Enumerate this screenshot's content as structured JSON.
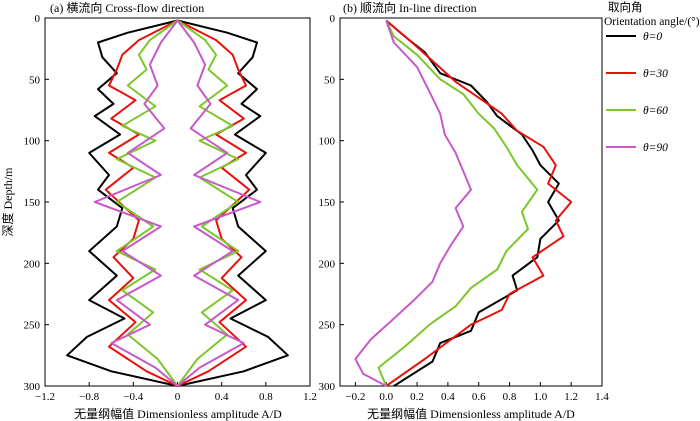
{
  "chart_data": [
    {
      "type": "line",
      "title": "(a) 横流向 Cross-flow direction",
      "xlabel": "无量纲幅值 Dimensionless amplitude A/D",
      "ylabel": "深度 Depth/m",
      "xlim": [
        -1.2,
        1.2
      ],
      "ylim": [
        0,
        300
      ],
      "y_inverted": true,
      "xticks": [
        "−1.2",
        "−0.8",
        "−0.4",
        "0",
        "0.4",
        "0.8",
        "1.2"
      ],
      "yticks": [
        "0",
        "50",
        "100",
        "150",
        "200",
        "250",
        "300"
      ],
      "mirrored": true,
      "series": [
        {
          "name": "θ=0",
          "color": "#000000",
          "points": [
            [
              0,
              2
            ],
            [
              0.45,
              12
            ],
            [
              0.72,
              20
            ],
            [
              0.68,
              32
            ],
            [
              0.55,
              45
            ],
            [
              0.72,
              58
            ],
            [
              0.58,
              70
            ],
            [
              0.75,
              80
            ],
            [
              0.52,
              95
            ],
            [
              0.8,
              110
            ],
            [
              0.62,
              128
            ],
            [
              0.72,
              140
            ],
            [
              0.5,
              155
            ],
            [
              0.55,
              170
            ],
            [
              0.8,
              190
            ],
            [
              0.55,
              210
            ],
            [
              0.8,
              230
            ],
            [
              0.48,
              245
            ],
            [
              0.82,
              260
            ],
            [
              1.0,
              275
            ],
            [
              0.6,
              288
            ],
            [
              0,
              300
            ]
          ]
        },
        {
          "name": "θ=30",
          "color": "#e8120c",
          "points": [
            [
              0,
              2
            ],
            [
              0.35,
              18
            ],
            [
              0.5,
              30
            ],
            [
              0.55,
              42
            ],
            [
              0.62,
              55
            ],
            [
              0.38,
              67
            ],
            [
              0.6,
              82
            ],
            [
              0.35,
              95
            ],
            [
              0.62,
              110
            ],
            [
              0.4,
              122
            ],
            [
              0.65,
              140
            ],
            [
              0.35,
              165
            ],
            [
              0.4,
              180
            ],
            [
              0.58,
              195
            ],
            [
              0.4,
              212
            ],
            [
              0.62,
              230
            ],
            [
              0.38,
              248
            ],
            [
              0.62,
              268
            ],
            [
              0.28,
              288
            ],
            [
              0,
              300
            ]
          ]
        },
        {
          "name": "θ=60",
          "color": "#7dc62c",
          "points": [
            [
              0,
              2
            ],
            [
              0.25,
              18
            ],
            [
              0.35,
              30
            ],
            [
              0.28,
              42
            ],
            [
              0.45,
              55
            ],
            [
              0.2,
              72
            ],
            [
              0.5,
              88
            ],
            [
              0.2,
              100
            ],
            [
              0.55,
              115
            ],
            [
              0.2,
              130
            ],
            [
              0.55,
              150
            ],
            [
              0.22,
              170
            ],
            [
              0.55,
              190
            ],
            [
              0.2,
              205
            ],
            [
              0.5,
              222
            ],
            [
              0.22,
              240
            ],
            [
              0.45,
              258
            ],
            [
              0.18,
              278
            ],
            [
              0,
              300
            ]
          ]
        },
        {
          "name": "θ=90",
          "color": "#c859c8",
          "points": [
            [
              0,
              2
            ],
            [
              0.15,
              20
            ],
            [
              0.25,
              38
            ],
            [
              0.18,
              55
            ],
            [
              0.3,
              70
            ],
            [
              0.12,
              90
            ],
            [
              0.45,
              110
            ],
            [
              0.15,
              128
            ],
            [
              0.75,
              150
            ],
            [
              0.15,
              170
            ],
            [
              0.5,
              190
            ],
            [
              0.15,
              210
            ],
            [
              0.55,
              230
            ],
            [
              0.25,
              250
            ],
            [
              0.6,
              265
            ],
            [
              0.2,
              285
            ],
            [
              0,
              300
            ]
          ]
        }
      ]
    },
    {
      "type": "line",
      "title": "(b) 顺流向 In-line direction",
      "xlabel": "无量纲幅值 Dimensionless amplitude A/D",
      "ylabel": "",
      "xlim": [
        -0.3,
        1.4
      ],
      "ylim": [
        0,
        300
      ],
      "y_inverted": true,
      "xticks": [
        "−0.2",
        "0.0",
        "0.2",
        "0.4",
        "0.6",
        "0.8",
        "1.0",
        "1.2",
        "1.4"
      ],
      "yticks": [
        "0",
        "50",
        "100",
        "150",
        "200",
        "250",
        "300"
      ],
      "series": [
        {
          "name": "θ=0",
          "color": "#000000",
          "points": [
            [
              0.0,
              2
            ],
            [
              0.12,
              15
            ],
            [
              0.25,
              28
            ],
            [
              0.35,
              45
            ],
            [
              0.55,
              55
            ],
            [
              0.65,
              68
            ],
            [
              0.72,
              80
            ],
            [
              0.88,
              95
            ],
            [
              0.95,
              108
            ],
            [
              1.0,
              120
            ],
            [
              1.12,
              135
            ],
            [
              1.05,
              150
            ],
            [
              1.12,
              165
            ],
            [
              1.0,
              180
            ],
            [
              0.98,
              195
            ],
            [
              0.82,
              210
            ],
            [
              0.85,
              222
            ],
            [
              0.6,
              240
            ],
            [
              0.55,
              255
            ],
            [
              0.35,
              265
            ],
            [
              0.3,
              280
            ],
            [
              0.05,
              300
            ]
          ]
        },
        {
          "name": "θ=30",
          "color": "#e8120c",
          "points": [
            [
              0.0,
              2
            ],
            [
              0.15,
              18
            ],
            [
              0.3,
              35
            ],
            [
              0.45,
              52
            ],
            [
              0.6,
              65
            ],
            [
              0.75,
              78
            ],
            [
              0.85,
              92
            ],
            [
              1.02,
              105
            ],
            [
              1.1,
              120
            ],
            [
              1.05,
              135
            ],
            [
              1.2,
              150
            ],
            [
              1.1,
              165
            ],
            [
              1.15,
              178
            ],
            [
              0.95,
              195
            ],
            [
              1.02,
              210
            ],
            [
              0.8,
              225
            ],
            [
              0.75,
              238
            ],
            [
              0.55,
              250
            ],
            [
              0.42,
              262
            ],
            [
              0.25,
              278
            ],
            [
              0.0,
              300
            ]
          ]
        },
        {
          "name": "θ=60",
          "color": "#7dc62c",
          "points": [
            [
              0.0,
              2
            ],
            [
              0.05,
              15
            ],
            [
              0.2,
              30
            ],
            [
              0.35,
              50
            ],
            [
              0.5,
              62
            ],
            [
              0.6,
              78
            ],
            [
              0.7,
              90
            ],
            [
              0.78,
              105
            ],
            [
              0.85,
              120
            ],
            [
              0.98,
              140
            ],
            [
              0.88,
              158
            ],
            [
              0.92,
              172
            ],
            [
              0.78,
              190
            ],
            [
              0.72,
              205
            ],
            [
              0.55,
              220
            ],
            [
              0.45,
              235
            ],
            [
              0.28,
              250
            ],
            [
              0.12,
              268
            ],
            [
              -0.05,
              285
            ],
            [
              0.0,
              300
            ]
          ]
        },
        {
          "name": "θ=90",
          "color": "#c859c8",
          "points": [
            [
              0.0,
              2
            ],
            [
              0.05,
              20
            ],
            [
              0.2,
              40
            ],
            [
              0.28,
              60
            ],
            [
              0.35,
              78
            ],
            [
              0.38,
              95
            ],
            [
              0.45,
              110
            ],
            [
              0.5,
              125
            ],
            [
              0.55,
              140
            ],
            [
              0.45,
              155
            ],
            [
              0.5,
              170
            ],
            [
              0.42,
              185
            ],
            [
              0.35,
              200
            ],
            [
              0.3,
              215
            ],
            [
              0.18,
              230
            ],
            [
              0.05,
              245
            ],
            [
              -0.1,
              262
            ],
            [
              -0.2,
              278
            ],
            [
              -0.15,
              290
            ],
            [
              0.0,
              300
            ]
          ]
        }
      ]
    }
  ],
  "legend": {
    "title_cn": "取向角",
    "title_en": "Orientation angle/(°)",
    "items": [
      {
        "label": "θ=0",
        "color": "#000000"
      },
      {
        "label": "θ=30",
        "color": "#e8120c"
      },
      {
        "label": "θ=60",
        "color": "#7dc62c"
      },
      {
        "label": "θ=90",
        "color": "#c859c8"
      }
    ]
  }
}
